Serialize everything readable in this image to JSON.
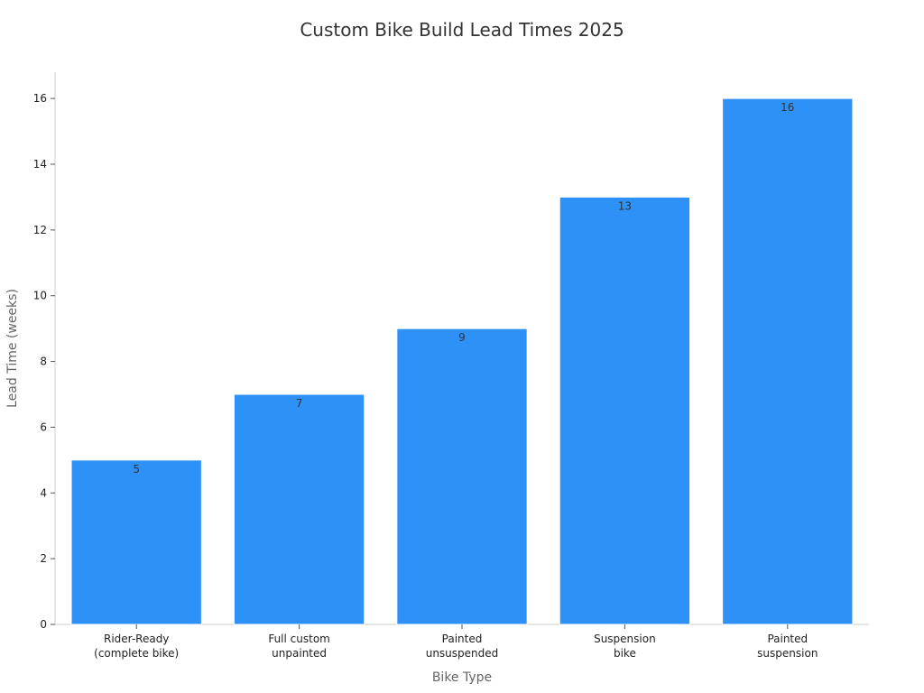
{
  "chart_data": {
    "type": "bar",
    "title": "Custom Bike Build Lead Times 2025",
    "xlabel": "Bike Type",
    "ylabel": "Lead Time (weeks)",
    "categories": [
      [
        "Rider-Ready",
        "(complete bike)"
      ],
      [
        "Full custom",
        "unpainted"
      ],
      [
        "Painted",
        "unsuspended"
      ],
      [
        "Suspension",
        "bike"
      ],
      [
        "Painted",
        "suspension"
      ]
    ],
    "values": [
      5,
      7,
      9,
      13,
      16
    ],
    "data_labels": [
      "5",
      "7",
      "9",
      "13",
      "16"
    ],
    "ylim": [
      0,
      16.8
    ],
    "yticks": [
      0,
      2,
      4,
      6,
      8,
      10,
      12,
      14,
      16
    ],
    "grid": false,
    "legend": "none",
    "bar_color": "#2e91f8",
    "bar_edge_color": "#ffffff"
  }
}
